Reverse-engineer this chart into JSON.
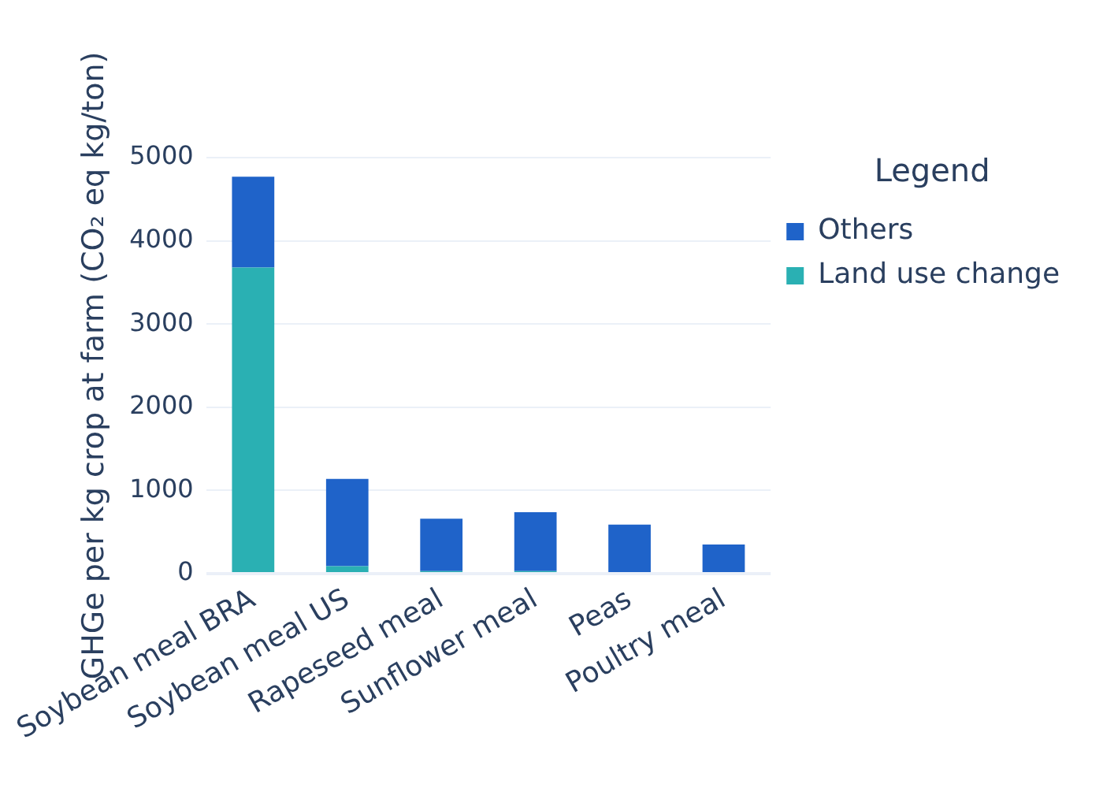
{
  "chart_data": {
    "type": "bar",
    "ylabel": "GHGe per kg crop at farm (CO₂ eq kg/ton)",
    "legend_title": "Legend",
    "categories": [
      "Soybean meal BRA",
      "Soybean meal US",
      "Rapeseed meal",
      "Sunflower meal",
      "Peas",
      "Poultry meal"
    ],
    "series": [
      {
        "name": "Land use change",
        "color": "#2ab0b3",
        "values": [
          3680,
          90,
          30,
          30,
          0,
          0
        ]
      },
      {
        "name": "Others",
        "color": "#1f63c9",
        "values": [
          1090,
          1050,
          630,
          710,
          590,
          350
        ]
      }
    ],
    "stacked": true,
    "ylim": [
      0,
      5000
    ],
    "yticks": [
      0,
      1000,
      2000,
      3000,
      4000,
      5000
    ],
    "grid": "y",
    "legend": "top right"
  }
}
